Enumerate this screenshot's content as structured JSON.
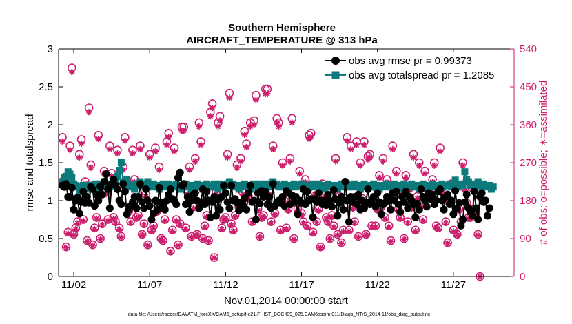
{
  "chart_data": {
    "type": "line",
    "title": "Southern Hemisphere",
    "subtitle": "AIRCRAFT_TEMPERATURE @ 313 hPa",
    "xlabel": "Nov.01,2014 00:00:00 start",
    "ylabel_left": "rmse and totalspread",
    "ylabel_right": "# of obs: o=possible; ∗=assimilated",
    "footnote": "data file: /Users/raeder/DAI/ATM_forcXX/CAM6_setup/f.e21.FHIST_BGC.f09_025.CAM6assim.011/Diags_NTrS_2014-11/obs_diag_output.nc",
    "xlim": [
      1.0,
      31.0
    ],
    "ylim_left": [
      0,
      3
    ],
    "ylim_right": [
      0,
      540
    ],
    "x_tick_values": [
      2,
      7,
      12,
      17,
      22,
      27
    ],
    "x_tick_labels": [
      "11/02",
      "11/07",
      "11/12",
      "11/17",
      "11/22",
      "11/27"
    ],
    "y_left_ticks": [
      "0",
      "0.5",
      "1",
      "1.5",
      "2",
      "2.5",
      "3"
    ],
    "y_right_ticks": [
      "0",
      "90",
      "180",
      "270",
      "360",
      "450",
      "540"
    ],
    "legend": [
      "obs avg rmse pr = 0.99373",
      "obs avg totalspread pr = 1.2085"
    ],
    "colors": {
      "rmse": "#000000",
      "spread": "#0c7a7a",
      "obs": "#cc1f6e"
    },
    "series": [
      {
        "name": "obs avg rmse pr = 0.99373",
        "axis": "left",
        "values": [
          1.2,
          1.18,
          1.22,
          1.05,
          1.05,
          1.17,
          0.88,
          1.0,
          1.04,
          0.83,
          0.98,
          1.12,
          0.97,
          1.05,
          0.97,
          1.18,
          1.15,
          0.93,
          1.08,
          1.0,
          1.19,
          1.08,
          1.25,
          1.35,
          1.15,
          0.9,
          1.22,
          1.28,
          1.2,
          1.15,
          1.0,
          0.95,
          1.22,
          1.12,
          0.82,
          0.88,
          0.93,
          0.98,
          1.05,
          0.9,
          1.05,
          1.22,
          0.98,
          0.9,
          1.15,
          1.0,
          0.93,
          0.75,
          0.83,
          1.0,
          0.88,
          1.17,
          0.98,
          0.93,
          0.88,
          1.0,
          1.08,
          1.15,
          1.02,
          1.0,
          0.95,
          1.3,
          1.37,
          1.2,
          1.22,
          0.95,
          1.05,
          0.85,
          1.0,
          1.08,
          1.1,
          1.0,
          0.9,
          0.98,
          1.15,
          0.95,
          1.12,
          1.0,
          0.78,
          0.98,
          1.05,
          0.8,
          1.02,
          0.88,
          1.05,
          1.2,
          1.1,
          0.98,
          0.9,
          1.2,
          1.0,
          1.02,
          0.97,
          0.87,
          0.98,
          0.92,
          1.03,
          0.88,
          1.1,
          1.2,
          0.98,
          1.0,
          0.75,
          1.1,
          0.96,
          1.13,
          1.05,
          1.12,
          0.95,
          1.05,
          0.9,
          1.22,
          0.93,
          0.98,
          1.0,
          0.97,
          1.05,
          0.93,
          1.13,
          1.1,
          0.95,
          1.07,
          0.98,
          1.05,
          0.82,
          1.0,
          0.97,
          1.15,
          0.95,
          1.12,
          1.0,
          1.02,
          0.78,
          1.02,
          0.98,
          1.1,
          1.0,
          0.95,
          1.0,
          0.94,
          1.08,
          1.0,
          0.92,
          1.14,
          1.02,
          0.8,
          0.97,
          1.05,
          0.88,
          1.25,
          1.0,
          0.72,
          1.05,
          0.98,
          1.05,
          0.95,
          1.08,
          0.88,
          1.0,
          0.9,
          0.98,
          1.15,
          0.95,
          1.0,
          1.05,
          0.92,
          1.1,
          0.98,
          0.82,
          0.95,
          0.97,
          1.05,
          1.0,
          0.88,
          1.1,
          1.0,
          1.12,
          0.95,
          0.85,
          1.05,
          0.98,
          1.12,
          0.9,
          1.05,
          1.0,
          0.95,
          0.78,
          0.96,
          0.88,
          1.15,
          1.05,
          1.0,
          0.92,
          1.1,
          1.02,
          1.08,
          0.95,
          1.0,
          1.12,
          1.15,
          1.0,
          0.88,
          1.05,
          1.08,
          0.95,
          1.0,
          0.82,
          1.13,
          0.9,
          0.97,
          0.67,
          0.75,
          0.98,
          1.08,
          0.9,
          0.85,
          0.8,
          1.12,
          0.9,
          0.75,
          1.05,
          1.1,
          0.98,
          1.0,
          0.8,
          0.9
        ]
      },
      {
        "name": "obs avg totalspread pr = 1.2085",
        "axis": "left",
        "values": [
          1.25,
          1.3,
          1.32,
          1.38,
          1.35,
          1.3,
          1.22,
          1.2,
          1.18,
          1.12,
          1.15,
          1.2,
          1.17,
          1.2,
          1.15,
          1.2,
          1.18,
          1.22,
          1.2,
          1.15,
          1.22,
          1.2,
          1.25,
          1.22,
          1.2,
          1.18,
          1.22,
          1.2,
          1.27,
          1.32,
          1.4,
          1.5,
          1.25,
          1.2,
          1.28,
          1.22,
          1.18,
          1.2,
          1.15,
          1.22,
          1.2,
          1.25,
          1.22,
          1.2,
          1.18,
          1.25,
          1.2,
          1.18,
          1.22,
          1.2,
          1.18,
          1.15,
          1.2,
          1.22,
          1.18,
          1.2,
          1.22,
          1.15,
          1.2,
          1.18,
          1.22,
          1.2,
          1.15,
          1.18,
          1.2,
          1.22,
          1.18,
          1.2,
          1.15,
          1.2,
          1.18,
          1.22,
          1.2,
          1.18,
          1.15,
          1.2,
          1.22,
          1.18,
          1.2,
          1.18,
          1.22,
          1.2,
          1.15,
          1.22,
          1.2,
          1.18,
          1.2,
          1.22,
          1.25,
          1.2,
          1.22,
          1.18,
          1.2,
          1.15,
          1.18,
          1.2,
          1.22,
          1.2,
          1.18,
          1.15,
          1.2,
          1.22,
          1.18,
          1.2,
          1.22,
          1.2,
          1.18,
          1.22,
          1.2,
          1.18,
          1.22,
          1.25,
          1.2,
          1.22,
          1.18,
          1.2,
          1.18,
          1.22,
          1.2,
          1.15,
          1.18,
          1.2,
          1.22,
          1.18,
          1.2,
          1.2,
          1.22,
          1.18,
          1.2,
          1.15,
          1.2,
          1.18,
          1.22,
          1.2,
          1.18,
          1.22,
          1.2,
          1.18,
          1.15,
          1.2,
          1.22,
          1.18,
          1.2,
          1.2,
          1.18,
          1.15,
          1.2,
          1.22,
          1.18,
          1.2,
          1.22,
          1.18,
          1.2,
          1.18,
          1.22,
          1.2,
          1.18,
          1.15,
          1.2,
          1.22,
          1.18,
          1.2,
          1.18,
          1.2,
          1.22,
          1.18,
          1.2,
          1.15,
          1.2,
          1.2,
          1.18,
          1.22,
          1.2,
          1.18,
          1.2,
          1.22,
          1.18,
          1.15,
          1.2,
          1.2,
          1.22,
          1.18,
          1.2,
          1.18,
          1.22,
          1.2,
          1.18,
          1.2,
          1.15,
          1.2,
          1.22,
          1.18,
          1.2,
          1.2,
          1.18,
          1.22,
          1.2,
          1.18,
          1.15,
          1.2,
          1.22,
          1.18,
          1.2,
          1.2,
          1.22,
          1.18,
          1.2,
          1.27,
          1.2,
          1.18,
          1.22,
          1.2,
          1.38,
          1.28,
          1.25,
          1.2,
          1.22,
          1.18,
          1.2,
          1.25,
          1.2,
          1.18,
          1.22,
          1.2,
          1.18,
          1.2,
          1.15,
          1.18
        ]
      },
      {
        "name": "# of obs possible",
        "axis": "right",
        "values": [
          330,
          230,
          70,
          105,
          310,
          495,
          100,
          115,
          130,
          290,
          325,
          135,
          225,
          85,
          400,
          265,
          75,
          115,
          140,
          335,
          90,
          125,
          250,
          200,
          135,
          310,
          245,
          140,
          130,
          300,
          115,
          95,
          260,
          330,
          215,
          155,
          130,
          300,
          230,
          140,
          145,
          310,
          100,
          125,
          195,
          75,
          290,
          110,
          120,
          305,
          155,
          260,
          90,
          85,
          135,
          320,
          340,
          60,
          110,
          305,
          135,
          75,
          125,
          355,
          355,
          115,
          200,
          260,
          95,
          165,
          280,
          100,
          365,
          320,
          90,
          120,
          145,
          85,
          390,
          410,
          45,
          200,
          365,
          380,
          115,
          135,
          140,
          290,
          435,
          125,
          110,
          145,
          265,
          165,
          280,
          200,
          345,
          315,
          190,
          365,
          130,
          370,
          430,
          160,
          95,
          140,
          145,
          445,
          445,
          200,
          130,
          310,
          150,
          375,
          365,
          110,
          270,
          180,
          115,
          160,
          280,
          375,
          90,
          180,
          160,
          250,
          150,
          130,
          230,
          120,
          335,
          340,
          105,
          200,
          130,
          160,
          70,
          220,
          195,
          140,
          130,
          90,
          145,
          120,
          280,
          100,
          190,
          80,
          110,
          185,
          330,
          110,
          310,
          165,
          130,
          320,
          95,
          270,
          185,
          320,
          100,
          285,
          290,
          120,
          215,
          120,
          160,
          240,
          165,
          280,
          140,
          230,
          120,
          85,
          310,
          215,
          250,
          160,
          140,
          200,
          90,
          240,
          130,
          210,
          165,
          290,
          110,
          190,
          270,
          170,
          135,
          250,
          210,
          195,
          195,
          230,
          270,
          120,
          115,
          305,
          210,
          200,
          130,
          80,
          180,
          220,
          110,
          220,
          100,
          160,
          130,
          270,
          210,
          175,
          140,
          140,
          210,
          160,
          150,
          100,
          0
        ]
      },
      {
        "name": "# of obs assimilated",
        "axis": "right",
        "values": [
          320,
          225,
          68,
          102,
          300,
          485,
          98,
          112,
          126,
          282,
          315,
          132,
          220,
          83,
          390,
          258,
          73,
          112,
          137,
          326,
          88,
          122,
          244,
          195,
          132,
          302,
          238,
          137,
          127,
          292,
          112,
          93,
          253,
          322,
          210,
          151,
          127,
          292,
          224,
          137,
          141,
          302,
          98,
          122,
          190,
          73,
          282,
          107,
          117,
          297,
          151,
          253,
          88,
          83,
          132,
          312,
          331,
          58,
          107,
          297,
          132,
          73,
          122,
          346,
          346,
          112,
          195,
          253,
          93,
          161,
          273,
          98,
          356,
          312,
          88,
          117,
          141,
          83,
          380,
          400,
          44,
          195,
          356,
          370,
          112,
          132,
          137,
          282,
          424,
          122,
          107,
          141,
          258,
          161,
          273,
          195,
          336,
          307,
          185,
          356,
          127,
          360,
          419,
          156,
          93,
          137,
          141,
          434,
          434,
          195,
          127,
          302,
          146,
          365,
          356,
          107,
          263,
          175,
          112,
          156,
          273,
          365,
          88,
          175,
          156,
          244,
          146,
          127,
          224,
          117,
          326,
          331,
          102,
          195,
          127,
          156,
          68,
          214,
          190,
          137,
          127,
          88,
          141,
          117,
          273,
          98,
          185,
          78,
          107,
          180,
          322,
          107,
          302,
          161,
          127,
          312,
          93,
          263,
          180,
          312,
          98,
          278,
          282,
          117,
          210,
          117,
          156,
          234,
          161,
          273,
          137,
          224,
          117,
          83,
          302,
          210,
          244,
          156,
          137,
          195,
          88,
          234,
          127,
          205,
          161,
          282,
          107,
          185,
          263,
          166,
          132,
          244,
          205,
          190,
          190,
          224,
          263,
          117,
          112,
          297,
          205,
          195,
          127,
          78,
          175,
          214,
          107,
          214,
          98,
          156,
          127,
          263,
          205,
          170,
          137,
          137,
          205,
          156,
          146,
          98,
          0
        ]
      }
    ]
  }
}
